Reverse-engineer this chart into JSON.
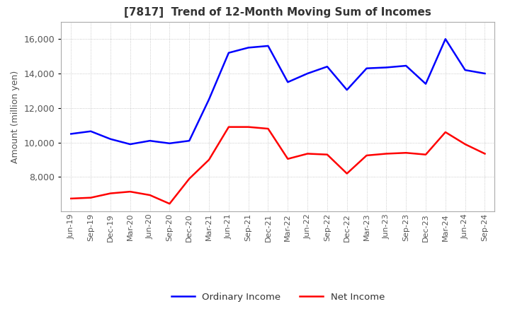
{
  "title": "[7817]  Trend of 12-Month Moving Sum of Incomes",
  "ylabel": "Amount (million yen)",
  "background_color": "#ffffff",
  "grid_color": "#aaaaaa",
  "ordinary_income_color": "#0000ff",
  "net_income_color": "#ff0000",
  "x_labels": [
    "Jun-19",
    "Sep-19",
    "Dec-19",
    "Mar-20",
    "Jun-20",
    "Sep-20",
    "Dec-20",
    "Mar-21",
    "Jun-21",
    "Sep-21",
    "Dec-21",
    "Mar-22",
    "Jun-22",
    "Sep-22",
    "Dec-22",
    "Mar-23",
    "Jun-23",
    "Sep-23",
    "Dec-23",
    "Mar-24",
    "Jun-24",
    "Sep-24"
  ],
  "ordinary_income": [
    10500,
    10650,
    10200,
    9900,
    10100,
    9950,
    10100,
    12500,
    15200,
    15500,
    15600,
    13500,
    14000,
    14400,
    13050,
    14300,
    14350,
    14450,
    13400,
    16000,
    14200,
    14000
  ],
  "net_income": [
    6750,
    6800,
    7050,
    7150,
    6950,
    6450,
    7900,
    9000,
    10900,
    10900,
    10800,
    9050,
    9350,
    9300,
    8200,
    9250,
    9350,
    9400,
    9300,
    10600,
    9900,
    9350
  ],
  "ylim": [
    6000,
    17000
  ],
  "yticks": [
    8000,
    10000,
    12000,
    14000,
    16000
  ]
}
